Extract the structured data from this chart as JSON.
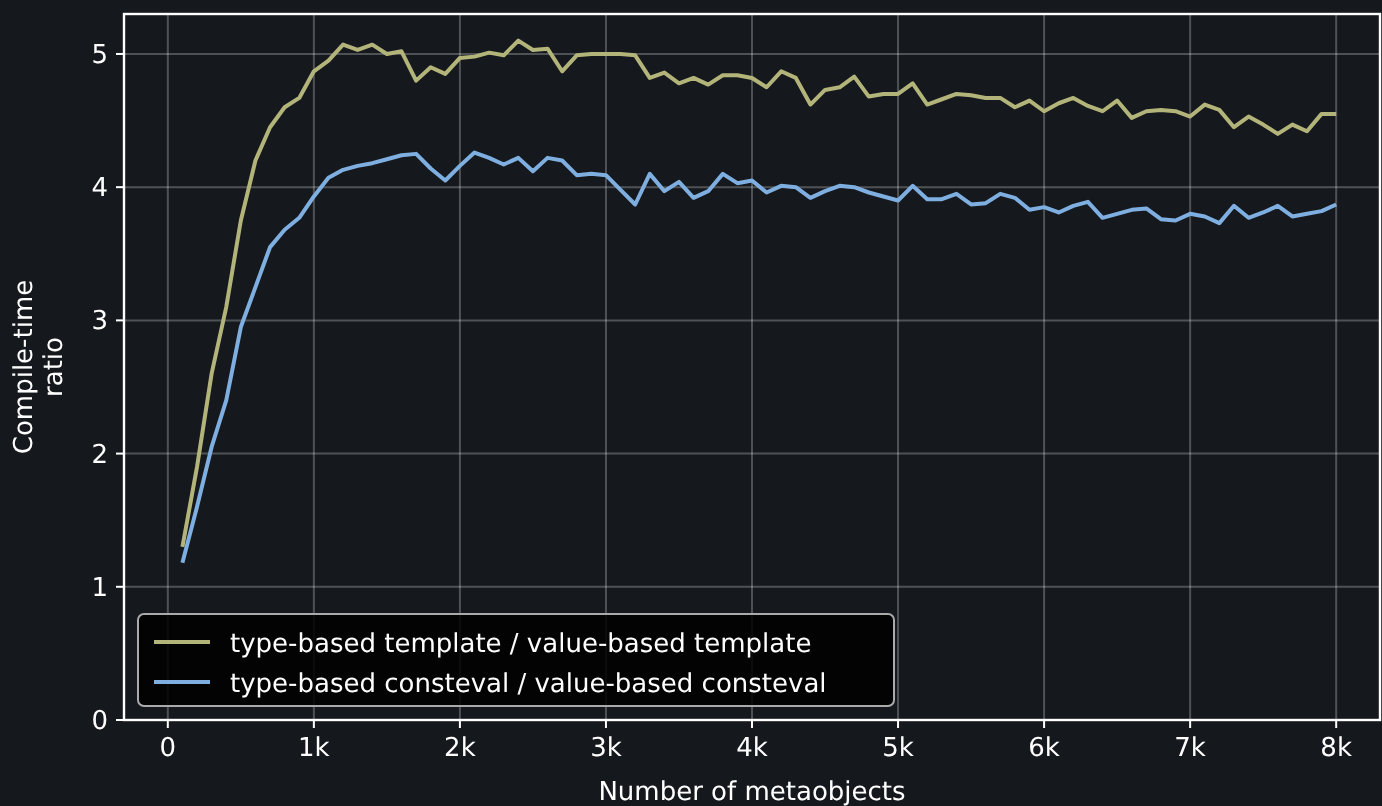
{
  "chart_data": {
    "type": "line",
    "xlabel": "Number of metaobjects",
    "ylabel": "Compile-time ratio",
    "x": [
      100,
      200,
      300,
      400,
      500,
      600,
      700,
      800,
      900,
      1000,
      1100,
      1200,
      1300,
      1400,
      1500,
      1600,
      1700,
      1800,
      1900,
      2000,
      2100,
      2200,
      2300,
      2400,
      2500,
      2600,
      2700,
      2800,
      2900,
      3000,
      3100,
      3200,
      3300,
      3400,
      3500,
      3600,
      3700,
      3800,
      3900,
      4000,
      4100,
      4200,
      4300,
      4400,
      4500,
      4600,
      4700,
      4800,
      4900,
      5000,
      5100,
      5200,
      5300,
      5400,
      5500,
      5600,
      5700,
      5800,
      5900,
      6000,
      6100,
      6200,
      6300,
      6400,
      6500,
      6600,
      6700,
      6800,
      6900,
      7000,
      7100,
      7200,
      7300,
      7400,
      7500,
      7600,
      7700,
      7800,
      7900,
      8000
    ],
    "series": [
      {
        "name": "type-based template / value-based template",
        "color": "#b3b479",
        "values": [
          1.3,
          1.9,
          2.6,
          3.1,
          3.75,
          4.2,
          4.45,
          4.6,
          4.67,
          4.87,
          4.95,
          5.07,
          5.03,
          5.07,
          5.0,
          5.02,
          4.8,
          4.9,
          4.85,
          4.97,
          4.98,
          5.01,
          4.99,
          5.1,
          5.03,
          5.04,
          4.87,
          4.99,
          5.0,
          5.0,
          5.0,
          4.99,
          4.82,
          4.86,
          4.78,
          4.82,
          4.77,
          4.84,
          4.84,
          4.82,
          4.75,
          4.87,
          4.82,
          4.62,
          4.73,
          4.75,
          4.83,
          4.68,
          4.7,
          4.7,
          4.78,
          4.62,
          4.66,
          4.7,
          4.69,
          4.67,
          4.67,
          4.6,
          4.65,
          4.57,
          4.63,
          4.67,
          4.61,
          4.57,
          4.65,
          4.52,
          4.57,
          4.58,
          4.57,
          4.53,
          4.62,
          4.58,
          4.45,
          4.53,
          4.47,
          4.4,
          4.47,
          4.42,
          4.55,
          4.55
        ]
      },
      {
        "name": "type-based consteval / value-based consteval",
        "color": "#7eafe0",
        "values": [
          1.18,
          1.6,
          2.05,
          2.4,
          2.95,
          3.25,
          3.55,
          3.68,
          3.77,
          3.93,
          4.07,
          4.13,
          4.16,
          4.18,
          4.21,
          4.24,
          4.25,
          4.14,
          4.05,
          4.16,
          4.26,
          4.22,
          4.17,
          4.22,
          4.12,
          4.22,
          4.2,
          4.09,
          4.1,
          4.09,
          3.98,
          3.87,
          4.1,
          3.97,
          4.04,
          3.92,
          3.97,
          4.1,
          4.03,
          4.05,
          3.96,
          4.01,
          4.0,
          3.92,
          3.97,
          4.01,
          4.0,
          3.96,
          3.93,
          3.9,
          4.01,
          3.91,
          3.91,
          3.95,
          3.87,
          3.88,
          3.95,
          3.92,
          3.83,
          3.85,
          3.81,
          3.86,
          3.89,
          3.77,
          3.8,
          3.83,
          3.84,
          3.76,
          3.75,
          3.8,
          3.78,
          3.73,
          3.86,
          3.77,
          3.81,
          3.86,
          3.78,
          3.8,
          3.82,
          3.87
        ]
      }
    ],
    "xlim": [
      -300,
      8300
    ],
    "xticks": [
      0,
      {
        "value": 1000,
        "label": "1k"
      },
      {
        "value": 2000,
        "label": "2k"
      },
      {
        "value": 3000,
        "label": "3k"
      },
      {
        "value": 4000,
        "label": "4k"
      },
      {
        "value": 5000,
        "label": "5k"
      },
      {
        "value": 6000,
        "label": "6k"
      },
      {
        "value": 7000,
        "label": "7k"
      },
      {
        "value": 8000,
        "label": "8k"
      }
    ],
    "ylim": [
      0,
      5.3
    ],
    "yticks": [
      0,
      1,
      2,
      3,
      4,
      5
    ],
    "grid": true,
    "legend": "bottom left",
    "line_style": "solid",
    "marker": "none"
  }
}
